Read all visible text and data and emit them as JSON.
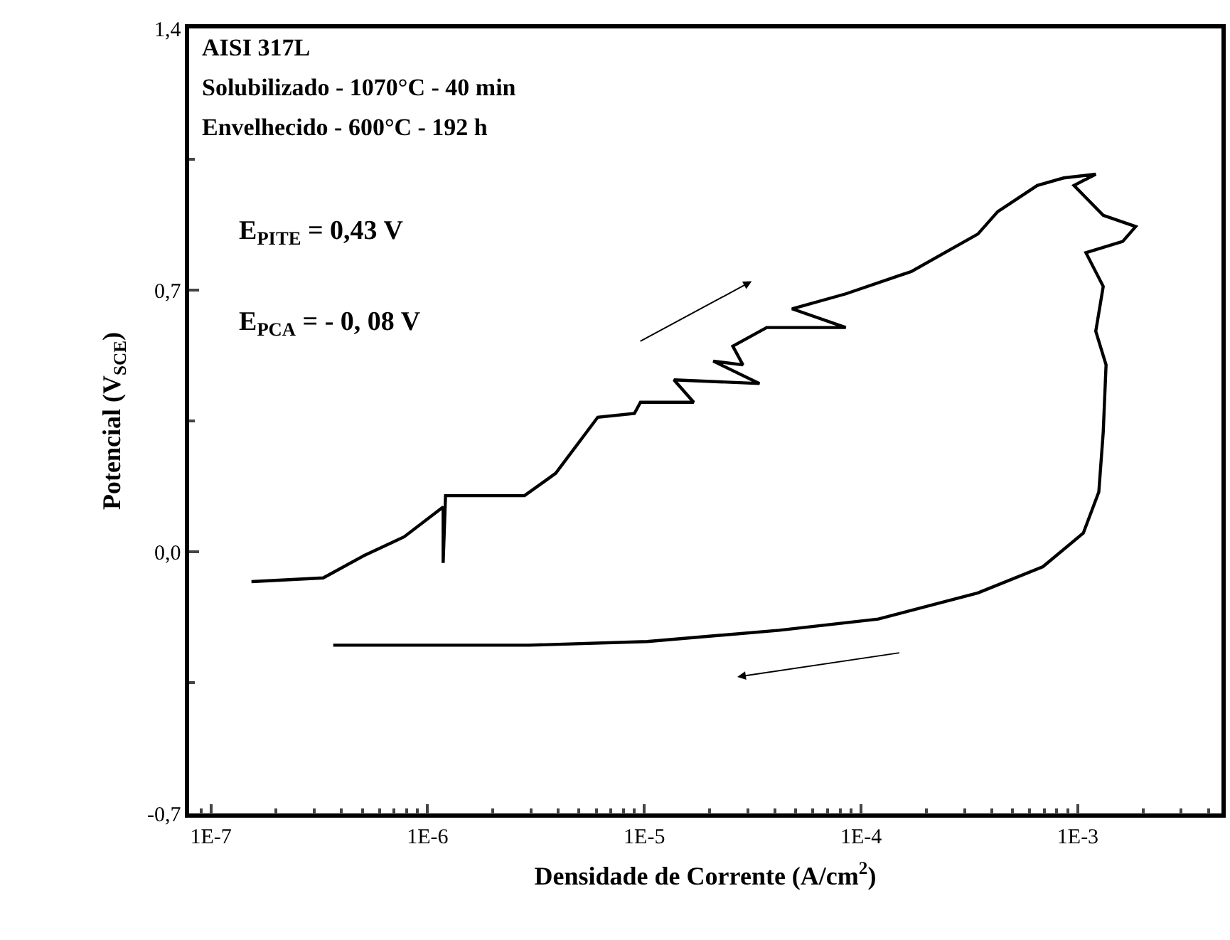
{
  "chart_data": {
    "type": "line",
    "xlabel": "Densidade de Corrente (A/cm$^{2}$)",
    "ylabel": "Potencial (V$_{SCE}$)",
    "annotations": [
      "AISI 317L",
      "Solubilizado - 1070°C - 40 min",
      "Envelhecido - 600°C - 192 h",
      "E$_{PITE}$ = 0,43 V",
      "E$_{PCA}$ = - 0, 08 V"
    ],
    "series": [
      {
        "color": "#000000",
        "x": [
          1.54e-07,
          3.3e-07,
          5.1e-07,
          7.8e-07,
          1.18e-06,
          1.18e-06,
          1.21e-06,
          2.8e-06,
          3.9e-06,
          6.1e-06,
          9e-06,
          9.6e-06,
          1.69e-05,
          1.37e-05,
          3.4e-05,
          2.08e-05,
          2.85e-05,
          2.56e-05,
          3.67e-05,
          8.5e-05,
          4.8e-05,
          8.5e-05,
          0.000171,
          0.000346,
          0.000427,
          0.00065,
          0.00086,
          0.00121,
          0.00096,
          0.00131,
          0.00185,
          0.00161,
          0.00109,
          0.00131,
          0.00121,
          0.00135,
          0.00131,
          0.00125,
          0.00106,
          0.00069,
          0.000346,
          0.00012,
          4.2e-05,
          1.03e-05,
          2.94e-06,
          3.67e-07
        ],
        "values": [
          -0.08,
          -0.07,
          -0.01,
          0.04,
          0.12,
          -0.03,
          0.15,
          0.15,
          0.21,
          0.36,
          0.37,
          0.4,
          0.4,
          0.46,
          0.45,
          0.51,
          0.5,
          0.55,
          0.6,
          0.6,
          0.65,
          0.69,
          0.75,
          0.85,
          0.91,
          0.98,
          1.0,
          1.01,
          0.98,
          0.9,
          0.87,
          0.83,
          0.8,
          0.71,
          0.59,
          0.5,
          0.32,
          0.16,
          0.05,
          -0.04,
          -0.11,
          -0.18,
          -0.21,
          -0.24,
          -0.25,
          -0.25
        ]
      }
    ],
    "log": "x",
    "xlim": [
      7.94e-08,
      0.0046
    ],
    "xticks": [
      {
        "value": 1e-07,
        "label": "1E-7"
      },
      {
        "value": 1e-06,
        "label": "1E-6"
      },
      {
        "value": 1e-05,
        "label": "1E-5"
      },
      {
        "value": 0.0001,
        "label": "1E-4"
      },
      {
        "value": 0.001,
        "label": "1E-3"
      }
    ],
    "ylim": [
      -0.7,
      1.4
    ],
    "yticks": [
      {
        "value": -0.7,
        "label": "-0,7"
      },
      {
        "value": 0,
        "label": "0,0"
      },
      {
        "value": 0.7,
        "label": "0,7"
      },
      {
        "value": 1.4,
        "label": "1,4"
      }
    ],
    "grid": false,
    "marker": "none",
    "line_style": "solid"
  }
}
